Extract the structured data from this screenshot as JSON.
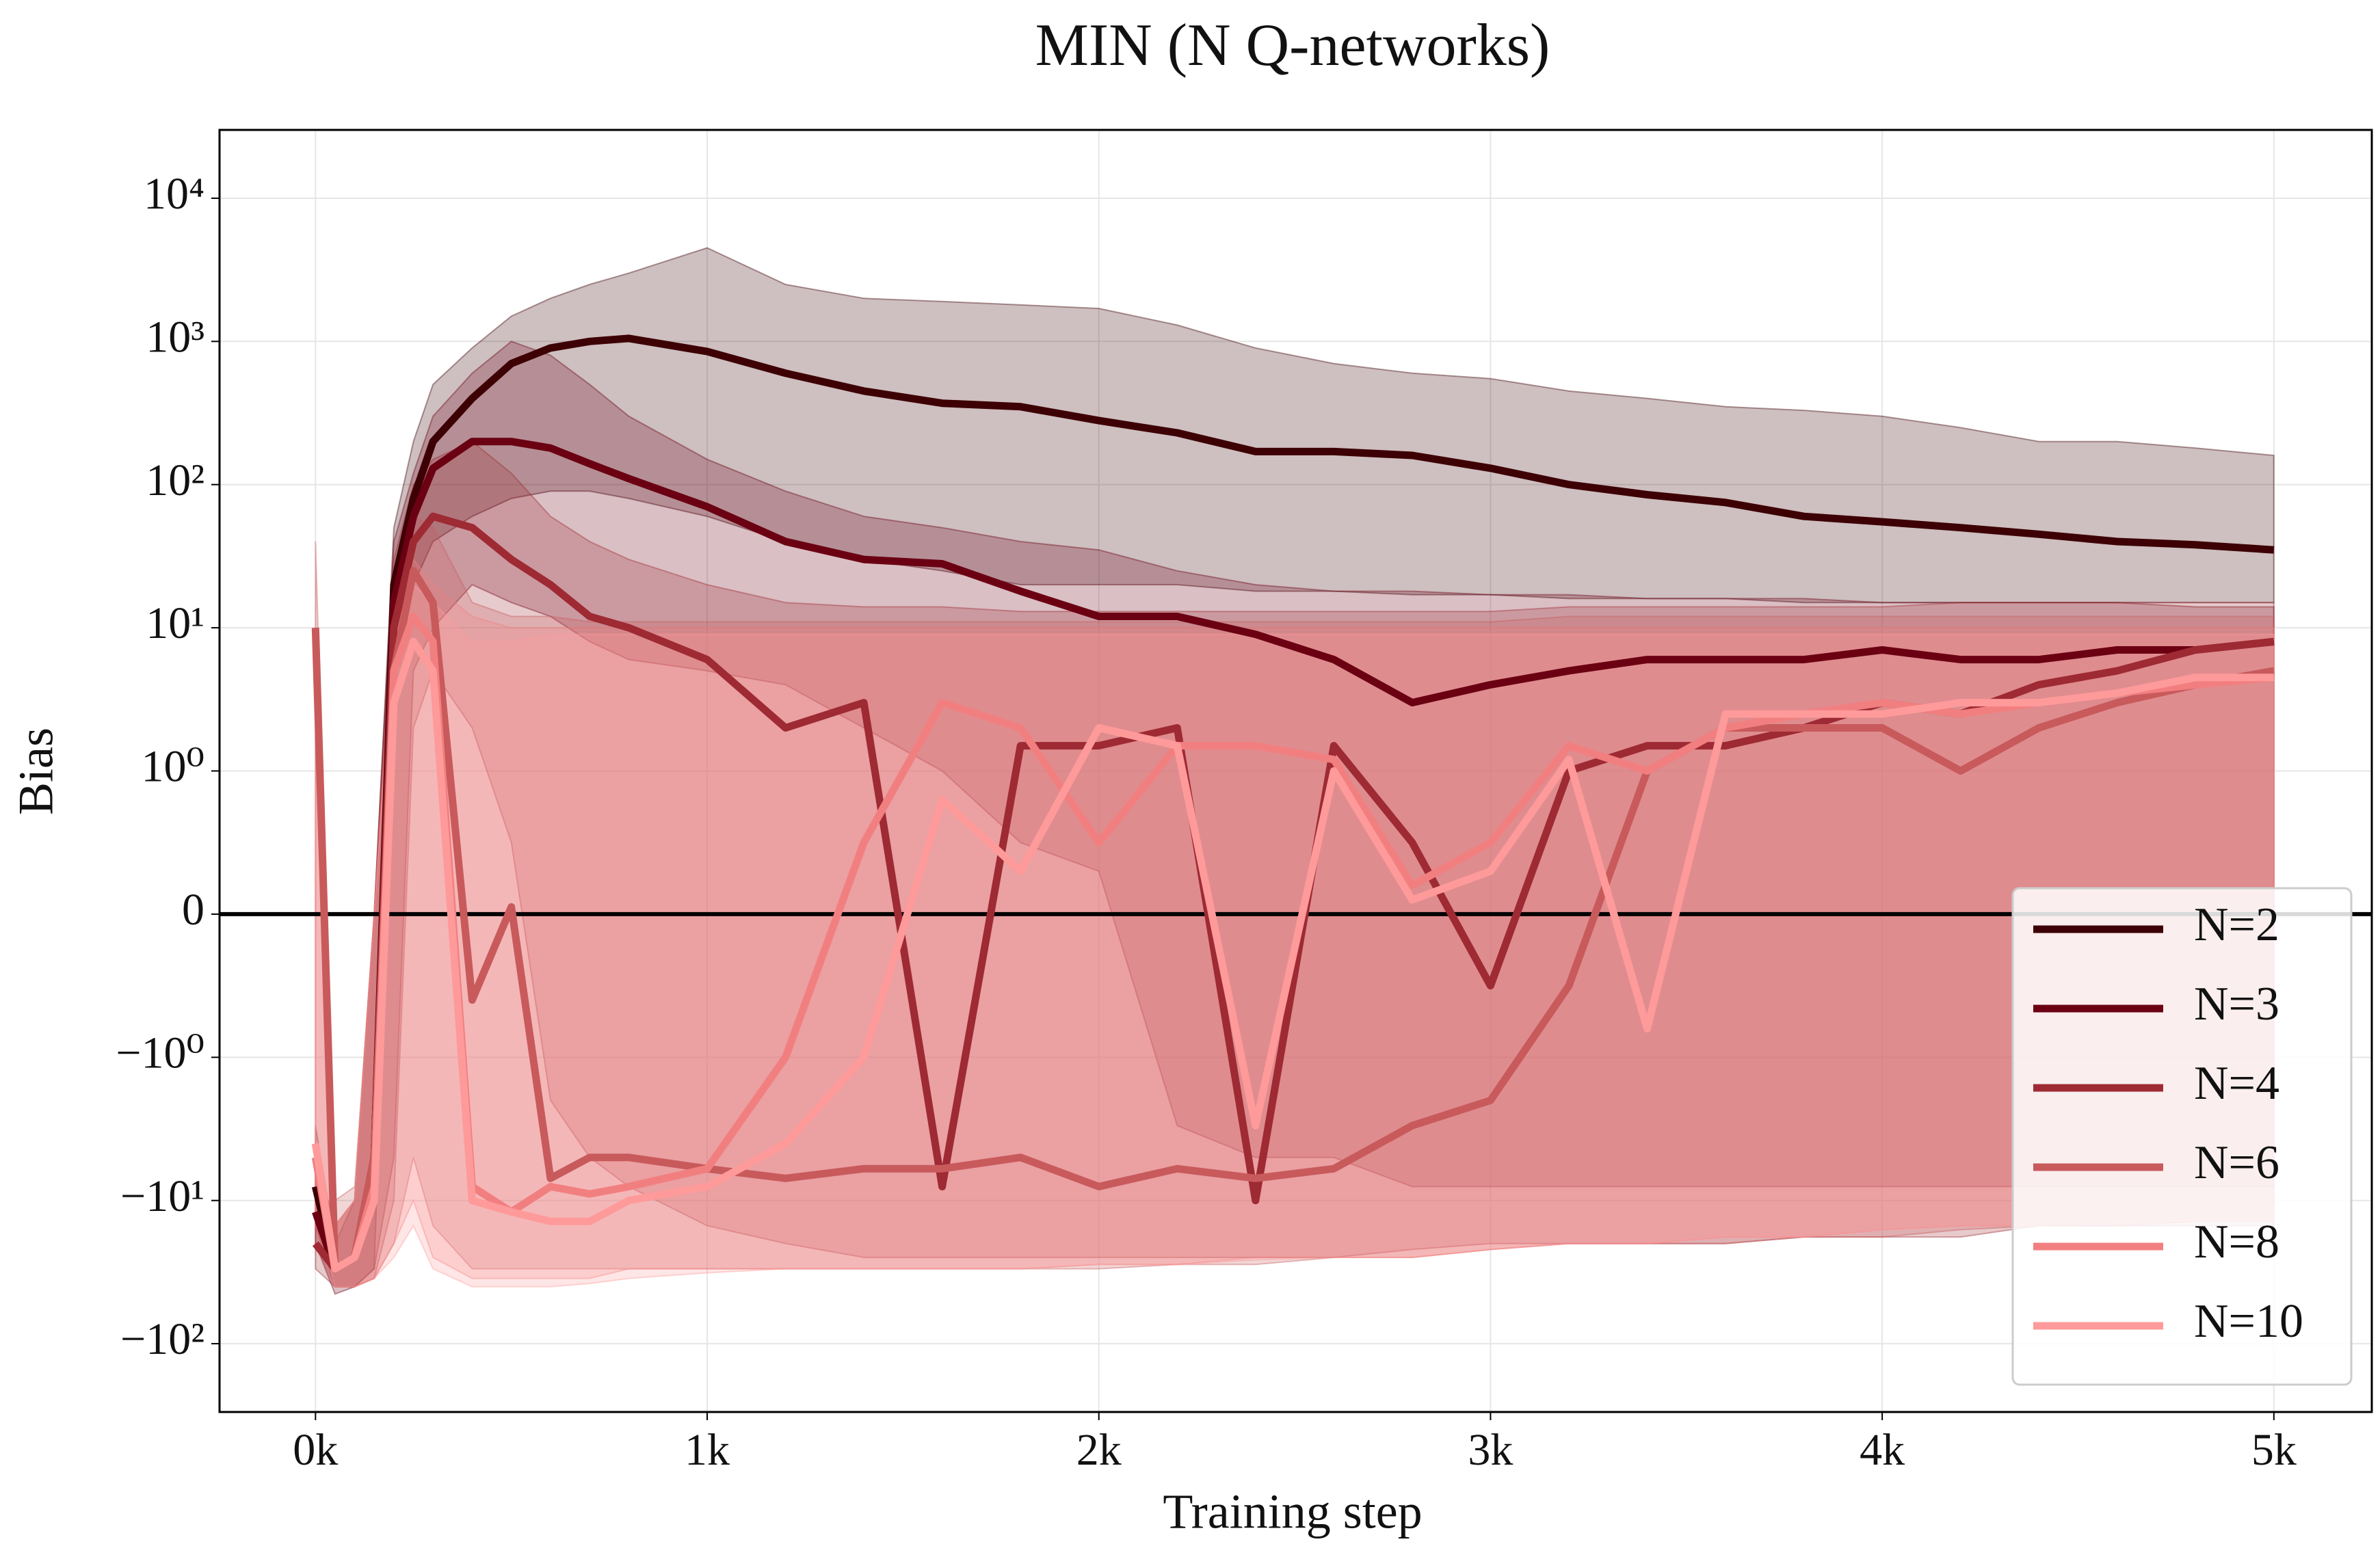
{
  "chart_data": {
    "type": "line",
    "title": "MIN (N Q-networks)",
    "xlabel": "Training step",
    "ylabel": "Bias",
    "yscale": "symlog",
    "linthresh": 1,
    "grid": true,
    "legend": "lower right",
    "axhline": 0,
    "xlim": [
      -245,
      5250
    ],
    "ylim": [
      -300,
      30000
    ],
    "xticks": [
      {
        "value": 0,
        "label": "0k"
      },
      {
        "value": 1000,
        "label": "1k"
      },
      {
        "value": 2000,
        "label": "2k"
      },
      {
        "value": 3000,
        "label": "3k"
      },
      {
        "value": 4000,
        "label": "4k"
      },
      {
        "value": 5000,
        "label": "5k"
      }
    ],
    "yticks": [
      {
        "value": -100,
        "label": "−10²"
      },
      {
        "value": -10,
        "label": "−10¹"
      },
      {
        "value": -1,
        "label": "−10⁰"
      },
      0,
      {
        "value": 1,
        "label": "10⁰"
      },
      {
        "value": 10,
        "label": "10¹"
      },
      {
        "value": 100,
        "label": "10²"
      },
      {
        "value": 1000,
        "label": "10³"
      },
      {
        "value": 10000,
        "label": "10⁴"
      }
    ],
    "x": [
      0,
      50,
      100,
      150,
      200,
      250,
      300,
      400,
      500,
      600,
      700,
      800,
      1000,
      1200,
      1400,
      1600,
      1800,
      2000,
      2200,
      2400,
      2600,
      2800,
      3000,
      3200,
      3400,
      3600,
      3800,
      4000,
      4200,
      4400,
      4600,
      4800,
      5000
    ],
    "series": [
      {
        "name": "N=2",
        "color": "#3d0004",
        "values": [
          -8,
          -30,
          -25,
          -5,
          20,
          80,
          200,
          400,
          700,
          900,
          1000,
          1050,
          850,
          600,
          450,
          370,
          350,
          280,
          230,
          170,
          170,
          160,
          130,
          100,
          85,
          75,
          60,
          55,
          50,
          45,
          40,
          38,
          35
        ],
        "lower": [
          -15,
          -40,
          -40,
          -30,
          5,
          20,
          40,
          60,
          80,
          90,
          90,
          80,
          60,
          40,
          30,
          25,
          20,
          20,
          20,
          18,
          18,
          17,
          17,
          16,
          16,
          16,
          15,
          15,
          15,
          15,
          15,
          15,
          15
        ],
        "upper": [
          -3,
          -20,
          -10,
          0,
          50,
          200,
          500,
          900,
          1500,
          2000,
          2500,
          3000,
          4500,
          2500,
          2000,
          1900,
          1800,
          1700,
          1300,
          900,
          700,
          600,
          550,
          450,
          400,
          350,
          330,
          300,
          250,
          200,
          200,
          180,
          160
        ]
      },
      {
        "name": "N=3",
        "color": "#6b0012",
        "values": [
          -12,
          -30,
          -25,
          -5,
          15,
          60,
          130,
          200,
          200,
          180,
          140,
          110,
          70,
          40,
          30,
          28,
          18,
          12,
          12,
          9,
          6,
          3,
          4,
          5,
          6,
          6,
          6,
          7,
          6,
          6,
          7,
          7,
          8
        ],
        "lower": [
          -20,
          -45,
          -40,
          -30,
          -5,
          5,
          10,
          20,
          15,
          12,
          8,
          6,
          5,
          4,
          2,
          1,
          0.5,
          0.3,
          -3,
          -5,
          -5,
          -8,
          -8,
          -8,
          -8,
          -8,
          -8,
          -8,
          -8,
          -8,
          -8,
          -8,
          -8
        ],
        "upper": [
          -5,
          -15,
          -10,
          0,
          40,
          120,
          300,
          600,
          1000,
          800,
          500,
          300,
          150,
          90,
          60,
          50,
          40,
          35,
          25,
          20,
          18,
          18,
          17,
          17,
          16,
          16,
          16,
          15,
          15,
          15,
          15,
          14,
          14
        ]
      },
      {
        "name": "N=4",
        "color": "#9e2a33",
        "values": [
          -20,
          -30,
          -25,
          -5,
          10,
          40,
          60,
          50,
          30,
          20,
          12,
          10,
          6,
          2,
          3,
          -8,
          1.5,
          1.5,
          2,
          -10,
          1.5,
          0.5,
          -0.5,
          1,
          1.5,
          1.5,
          2,
          3,
          2.5,
          4,
          5,
          7,
          8
        ],
        "lower": [
          -30,
          -40,
          -40,
          -35,
          -10,
          2,
          5,
          2,
          0.5,
          -2,
          -5,
          -8,
          -15,
          -20,
          -25,
          -25,
          -25,
          -25,
          -25,
          -25,
          -25,
          -22,
          -20,
          -20,
          -20,
          -20,
          -18,
          -18,
          -18,
          -15,
          -15,
          -15,
          -15
        ],
        "upper": [
          -5,
          -15,
          -10,
          0,
          30,
          100,
          150,
          200,
          120,
          60,
          40,
          30,
          20,
          15,
          14,
          14,
          13,
          13,
          13,
          13,
          13,
          13,
          13,
          14,
          14,
          14,
          14,
          14,
          15,
          15,
          15,
          15,
          15
        ]
      },
      {
        "name": "N=6",
        "color": "#c85a5c",
        "values": [
          10,
          -30,
          -25,
          -5,
          5,
          25,
          15,
          -0.6,
          0.05,
          -7,
          -5,
          -5,
          -6,
          -7,
          -6,
          -6,
          -5,
          -8,
          -6,
          -7,
          -6,
          -3,
          -2,
          -0.5,
          1,
          2,
          2,
          2,
          1,
          2,
          3,
          4,
          5
        ],
        "lower": [
          -20,
          -40,
          -40,
          -35,
          -20,
          -5,
          -15,
          -30,
          -30,
          -30,
          -30,
          -30,
          -30,
          -30,
          -30,
          -30,
          -30,
          -30,
          -28,
          -28,
          -25,
          -25,
          -22,
          -20,
          -20,
          -20,
          -18,
          -18,
          -16,
          -15,
          -15,
          -14,
          -14
        ],
        "upper": [
          40,
          -10,
          -8,
          0,
          20,
          60,
          50,
          15,
          12,
          12,
          11,
          11,
          11,
          11,
          11,
          11,
          11,
          11,
          11,
          11,
          11,
          11,
          11,
          12,
          12,
          12,
          12,
          12,
          12,
          12,
          12,
          12,
          12
        ]
      },
      {
        "name": "N=8",
        "color": "#f27f80",
        "values": [
          -5,
          -30,
          -25,
          -8,
          5,
          12,
          8,
          -8,
          -12,
          -8,
          -9,
          -8,
          -6,
          -1,
          0.5,
          3,
          2,
          0.5,
          1.5,
          1.5,
          1.2,
          0.2,
          0.5,
          1.5,
          1,
          2,
          2.5,
          3,
          2.5,
          3,
          3.5,
          4,
          4.5
        ],
        "lower": [
          -15,
          -40,
          -40,
          -35,
          -20,
          -10,
          -25,
          -35,
          -35,
          -35,
          -35,
          -30,
          -30,
          -30,
          -30,
          -30,
          -30,
          -28,
          -28,
          -25,
          -25,
          -25,
          -22,
          -20,
          -20,
          -18,
          -18,
          -16,
          -15,
          -15,
          -14,
          -14,
          -14
        ],
        "upper": [
          2,
          -15,
          -10,
          0,
          15,
          30,
          20,
          12,
          10,
          10,
          10,
          10,
          10,
          10,
          10,
          10,
          10,
          10,
          10,
          10,
          10,
          10,
          10,
          10,
          10,
          10,
          10,
          10,
          10,
          10,
          10,
          10,
          10
        ]
      },
      {
        "name": "N=10",
        "color": "#ff9a9a",
        "values": [
          -4,
          -30,
          -25,
          -10,
          3,
          8,
          5,
          -10,
          -12,
          -14,
          -14,
          -10,
          -8,
          -4,
          -1,
          0.8,
          0.3,
          2,
          1.5,
          -3,
          1,
          0.1,
          0.3,
          1.2,
          -0.8,
          2.5,
          2.5,
          2.5,
          3,
          3,
          3.5,
          4.5,
          4.5
        ],
        "lower": [
          -12,
          -40,
          -40,
          -35,
          -25,
          -15,
          -30,
          -40,
          -40,
          -40,
          -38,
          -35,
          -32,
          -30,
          -30,
          -30,
          -30,
          -28,
          -28,
          -26,
          -25,
          -25,
          -22,
          -20,
          -20,
          -18,
          -18,
          -16,
          -15,
          -15,
          -14,
          -14,
          -14
        ],
        "upper": [
          1,
          -15,
          -10,
          0,
          10,
          20,
          15,
          8,
          8,
          9,
          9,
          9,
          9,
          9,
          9,
          9,
          9,
          9,
          9,
          9,
          9,
          9,
          9,
          9,
          9,
          9,
          9,
          9,
          9,
          9,
          9,
          9,
          9
        ]
      }
    ]
  }
}
